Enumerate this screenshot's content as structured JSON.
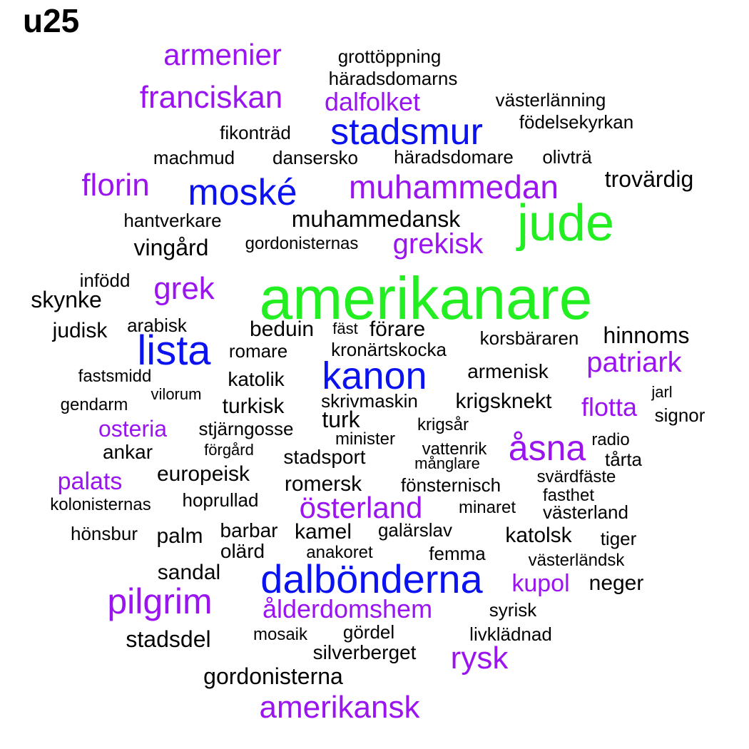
{
  "title": "u25",
  "colors": {
    "green": "#22ee22",
    "blue": "#0a12f0",
    "purple": "#9a14f0",
    "black": "#000000"
  },
  "words": [
    {
      "text": "amerikanare",
      "color": "green"
    },
    {
      "text": "jude",
      "color": "green"
    },
    {
      "text": "stadsmur",
      "color": "blue"
    },
    {
      "text": "moské",
      "color": "blue"
    },
    {
      "text": "lista",
      "color": "blue"
    },
    {
      "text": "kanon",
      "color": "blue"
    },
    {
      "text": "dalbönderna",
      "color": "blue"
    },
    {
      "text": "armenier",
      "color": "purple"
    },
    {
      "text": "franciskan",
      "color": "purple"
    },
    {
      "text": "dalfolket",
      "color": "purple"
    },
    {
      "text": "florin",
      "color": "purple"
    },
    {
      "text": "muhammedan",
      "color": "purple"
    },
    {
      "text": "grekisk",
      "color": "purple"
    },
    {
      "text": "grek",
      "color": "purple"
    },
    {
      "text": "patriark",
      "color": "purple"
    },
    {
      "text": "flotta",
      "color": "purple"
    },
    {
      "text": "osteria",
      "color": "purple"
    },
    {
      "text": "åsna",
      "color": "purple"
    },
    {
      "text": "palats",
      "color": "purple"
    },
    {
      "text": "österland",
      "color": "purple"
    },
    {
      "text": "pilgrim",
      "color": "purple"
    },
    {
      "text": "ålderdomshem",
      "color": "purple"
    },
    {
      "text": "kupol",
      "color": "purple"
    },
    {
      "text": "rysk",
      "color": "purple"
    },
    {
      "text": "amerikansk",
      "color": "purple"
    },
    {
      "text": "grottöppning",
      "color": "black"
    },
    {
      "text": "häradsdomarns",
      "color": "black"
    },
    {
      "text": "västerlänning",
      "color": "black"
    },
    {
      "text": "födelsekyrkan",
      "color": "black"
    },
    {
      "text": "fikonträd",
      "color": "black"
    },
    {
      "text": "machmud",
      "color": "black"
    },
    {
      "text": "dansersko",
      "color": "black"
    },
    {
      "text": "häradsdomare",
      "color": "black"
    },
    {
      "text": "olivträ",
      "color": "black"
    },
    {
      "text": "trovärdig",
      "color": "black"
    },
    {
      "text": "hantverkare",
      "color": "black"
    },
    {
      "text": "muhammedansk",
      "color": "black"
    },
    {
      "text": "vingård",
      "color": "black"
    },
    {
      "text": "gordonisternas",
      "color": "black"
    },
    {
      "text": "infödd",
      "color": "black"
    },
    {
      "text": "skynke",
      "color": "black"
    },
    {
      "text": "judisk",
      "color": "black"
    },
    {
      "text": "arabisk",
      "color": "black"
    },
    {
      "text": "beduin",
      "color": "black"
    },
    {
      "text": "fäst",
      "color": "black"
    },
    {
      "text": "förare",
      "color": "black"
    },
    {
      "text": "korsbäraren",
      "color": "black"
    },
    {
      "text": "hinnoms",
      "color": "black"
    },
    {
      "text": "romare",
      "color": "black"
    },
    {
      "text": "kronärtskocka",
      "color": "black"
    },
    {
      "text": "fastsmidd",
      "color": "black"
    },
    {
      "text": "katolik",
      "color": "black"
    },
    {
      "text": "armenisk",
      "color": "black"
    },
    {
      "text": "vilorum",
      "color": "black"
    },
    {
      "text": "gendarm",
      "color": "black"
    },
    {
      "text": "turkisk",
      "color": "black"
    },
    {
      "text": "skrivmaskin",
      "color": "black"
    },
    {
      "text": "krigsknekt",
      "color": "black"
    },
    {
      "text": "jarl",
      "color": "black"
    },
    {
      "text": "signor",
      "color": "black"
    },
    {
      "text": "turk",
      "color": "black"
    },
    {
      "text": "stjärngosse",
      "color": "black"
    },
    {
      "text": "krigsår",
      "color": "black"
    },
    {
      "text": "minister",
      "color": "black"
    },
    {
      "text": "radio",
      "color": "black"
    },
    {
      "text": "ankar",
      "color": "black"
    },
    {
      "text": "förgård",
      "color": "black"
    },
    {
      "text": "vattenrik",
      "color": "black"
    },
    {
      "text": "tårta",
      "color": "black"
    },
    {
      "text": "stadsport",
      "color": "black"
    },
    {
      "text": "månglare",
      "color": "black"
    },
    {
      "text": "europeisk",
      "color": "black"
    },
    {
      "text": "svärdfäste",
      "color": "black"
    },
    {
      "text": "romersk",
      "color": "black"
    },
    {
      "text": "fönsternisch",
      "color": "black"
    },
    {
      "text": "fasthet",
      "color": "black"
    },
    {
      "text": "hoprullad",
      "color": "black"
    },
    {
      "text": "kolonisternas",
      "color": "black"
    },
    {
      "text": "minaret",
      "color": "black"
    },
    {
      "text": "västerland",
      "color": "black"
    },
    {
      "text": "hönsbur",
      "color": "black"
    },
    {
      "text": "palm",
      "color": "black"
    },
    {
      "text": "barbar",
      "color": "black"
    },
    {
      "text": "kamel",
      "color": "black"
    },
    {
      "text": "galärslav",
      "color": "black"
    },
    {
      "text": "katolsk",
      "color": "black"
    },
    {
      "text": "tiger",
      "color": "black"
    },
    {
      "text": "olärd",
      "color": "black"
    },
    {
      "text": "anakoret",
      "color": "black"
    },
    {
      "text": "femma",
      "color": "black"
    },
    {
      "text": "västerländsk",
      "color": "black"
    },
    {
      "text": "sandal",
      "color": "black"
    },
    {
      "text": "neger",
      "color": "black"
    },
    {
      "text": "syrisk",
      "color": "black"
    },
    {
      "text": "gördel",
      "color": "black"
    },
    {
      "text": "stadsdel",
      "color": "black"
    },
    {
      "text": "mosaik",
      "color": "black"
    },
    {
      "text": "livklädnad",
      "color": "black"
    },
    {
      "text": "silverberget",
      "color": "black"
    },
    {
      "text": "gordonisterna",
      "color": "black"
    }
  ]
}
